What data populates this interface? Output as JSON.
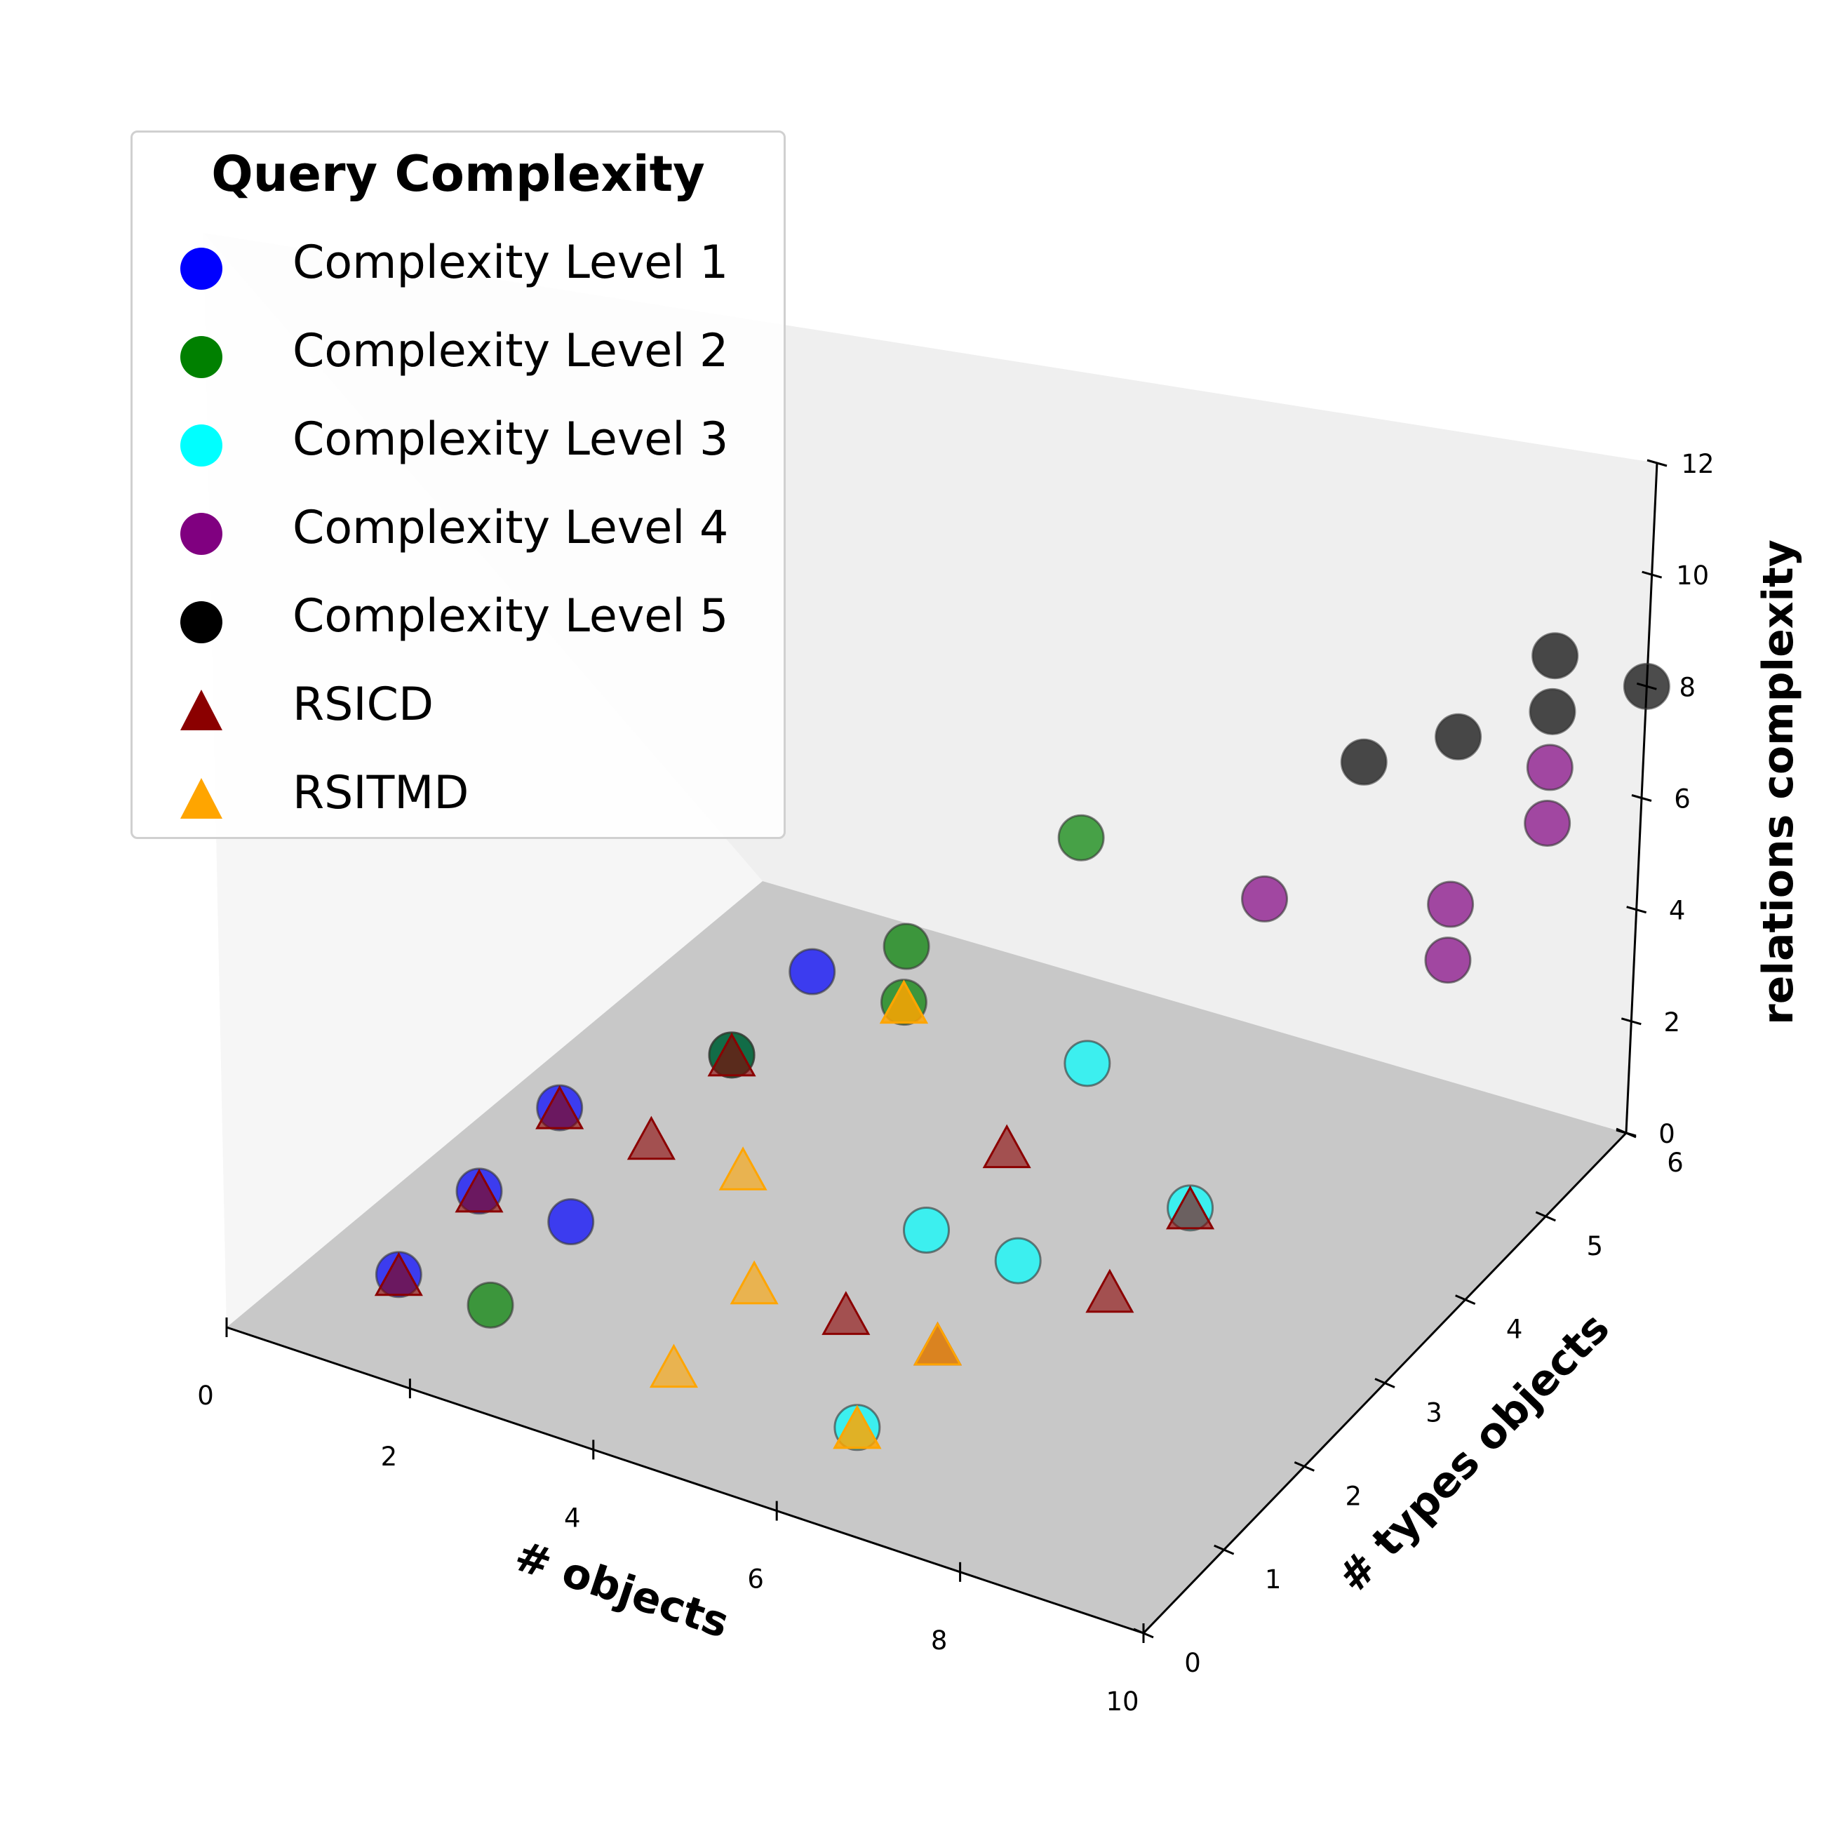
{
  "chart_data": {
    "type": "scatter",
    "subtype": "3d",
    "title": "",
    "xlabel": "# objects",
    "ylabel": "# types objects",
    "zlabel": "relations complexity",
    "xlim": [
      0,
      10
    ],
    "ylim": [
      0,
      6
    ],
    "zlim": [
      0,
      12
    ],
    "xticks": [
      "0",
      "2",
      "4",
      "6",
      "8",
      "10"
    ],
    "yticks": [
      "0",
      "1",
      "2",
      "3",
      "4",
      "5",
      "6"
    ],
    "zticks": [
      "0",
      "2",
      "4",
      "6",
      "8",
      "10",
      "12"
    ],
    "legend": {
      "title": "Query Complexity",
      "placement": "upper-left",
      "entries": [
        {
          "label": "Complexity Level 1",
          "marker": "circle",
          "color": "#0000ff"
        },
        {
          "label": "Complexity Level 2",
          "marker": "circle",
          "color": "#008000"
        },
        {
          "label": "Complexity Level 3",
          "marker": "circle",
          "color": "#00ffff"
        },
        {
          "label": "Complexity Level 4",
          "marker": "circle",
          "color": "#800080"
        },
        {
          "label": "Complexity Level 5",
          "marker": "circle",
          "color": "#000000"
        },
        {
          "label": "RSICD",
          "marker": "triangle",
          "color": "#8b0000"
        },
        {
          "label": "RSITMD",
          "marker": "triangle",
          "color": "#ffa500"
        }
      ]
    },
    "series": [
      {
        "name": "Complexity Level 1",
        "marker": "circle",
        "color": "#0000ff",
        "points": [
          [
            1,
            1,
            0
          ],
          [
            1,
            2,
            0
          ],
          [
            1,
            3,
            0
          ],
          [
            2,
            4,
            0
          ],
          [
            2,
            5,
            0
          ],
          [
            2,
            2,
            0
          ]
        ]
      },
      {
        "name": "Complexity Level 2",
        "marker": "circle",
        "color": "#008000",
        "points": [
          [
            2,
            1,
            0
          ],
          [
            2,
            4,
            0
          ],
          [
            3,
            5,
            0
          ],
          [
            3,
            5,
            1
          ],
          [
            4,
            6,
            2
          ]
        ]
      },
      {
        "name": "Complexity Level 3",
        "marker": "circle",
        "color": "#00ffff",
        "points": [
          [
            6,
            1,
            0
          ],
          [
            6,
            3,
            0
          ],
          [
            5,
            3,
            0
          ],
          [
            5,
            5,
            0
          ],
          [
            7,
            4,
            0
          ]
        ]
      },
      {
        "name": "Complexity Level 4",
        "marker": "circle",
        "color": "#800080",
        "points": [
          [
            6,
            6,
            2
          ],
          [
            8,
            6,
            2
          ],
          [
            8,
            6,
            3
          ],
          [
            9,
            6,
            5
          ],
          [
            9,
            6,
            6
          ]
        ]
      },
      {
        "name": "Complexity Level 5",
        "marker": "circle",
        "color": "#000000",
        "points": [
          [
            7,
            6,
            5
          ],
          [
            8,
            6,
            6
          ],
          [
            9,
            6,
            7
          ],
          [
            9,
            6,
            8
          ],
          [
            10,
            6,
            8
          ]
        ]
      },
      {
        "name": "RSICD",
        "marker": "triangle",
        "color": "#8b0000",
        "points": [
          [
            1,
            1,
            0
          ],
          [
            1,
            2,
            0
          ],
          [
            1,
            3,
            0
          ],
          [
            2,
            3,
            0
          ],
          [
            2,
            4,
            0
          ],
          [
            5,
            2,
            0
          ],
          [
            5,
            4,
            0
          ],
          [
            6,
            2,
            0
          ],
          [
            7,
            3,
            0
          ],
          [
            7,
            4,
            0
          ]
        ]
      },
      {
        "name": "RSITMD",
        "marker": "triangle",
        "color": "#ffa500",
        "points": [
          [
            3,
            3,
            0
          ],
          [
            4,
            2,
            0
          ],
          [
            4,
            1,
            0
          ],
          [
            3,
            5,
            0
          ],
          [
            3,
            5,
            0
          ],
          [
            6,
            2,
            0
          ],
          [
            6,
            1,
            0
          ],
          [
            6,
            1,
            0
          ]
        ]
      }
    ]
  }
}
